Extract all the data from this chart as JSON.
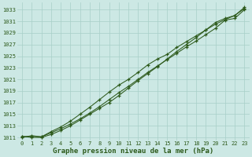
{
  "xlabel": "Graphe pression niveau de la mer (hPa)",
  "x": [
    0,
    1,
    2,
    3,
    4,
    5,
    6,
    7,
    8,
    9,
    10,
    11,
    12,
    13,
    14,
    15,
    16,
    17,
    18,
    19,
    20,
    21,
    22,
    23
  ],
  "line1": [
    1011.0,
    1011.3,
    1011.1,
    1011.8,
    1012.5,
    1013.3,
    1014.2,
    1015.2,
    1016.3,
    1017.5,
    1018.7,
    1019.8,
    1021.0,
    1022.2,
    1023.3,
    1024.4,
    1025.5,
    1026.6,
    1027.6,
    1028.7,
    1029.8,
    1031.2,
    1031.5,
    1033.0
  ],
  "line2": [
    1011.1,
    1011.2,
    1011.1,
    1012.0,
    1012.8,
    1013.8,
    1015.0,
    1016.2,
    1017.5,
    1018.8,
    1020.0,
    1021.0,
    1022.2,
    1023.5,
    1024.5,
    1025.3,
    1026.5,
    1027.5,
    1028.5,
    1029.5,
    1030.5,
    1031.3,
    1032.0,
    1033.2
  ],
  "line3": [
    1011.2,
    1011.0,
    1011.0,
    1011.5,
    1012.2,
    1013.0,
    1014.0,
    1015.0,
    1016.0,
    1017.0,
    1018.2,
    1019.5,
    1020.8,
    1022.0,
    1023.2,
    1024.5,
    1025.8,
    1027.0,
    1028.2,
    1029.5,
    1030.8,
    1031.5,
    1032.0,
    1033.4
  ],
  "line_color": "#2d5a1b",
  "bg_color": "#cce8e4",
  "grid_color": "#a8cfc8",
  "ylim": [
    1010.5,
    1034.2
  ],
  "yticks": [
    1011,
    1013,
    1015,
    1017,
    1019,
    1021,
    1023,
    1025,
    1027,
    1029,
    1031,
    1033
  ],
  "xticks": [
    0,
    1,
    2,
    3,
    4,
    5,
    6,
    7,
    8,
    9,
    10,
    11,
    12,
    13,
    14,
    15,
    16,
    17,
    18,
    19,
    20,
    21,
    22,
    23
  ],
  "tick_fontsize": 5.0,
  "label_fontsize": 6.5,
  "label_fontweight": "bold"
}
